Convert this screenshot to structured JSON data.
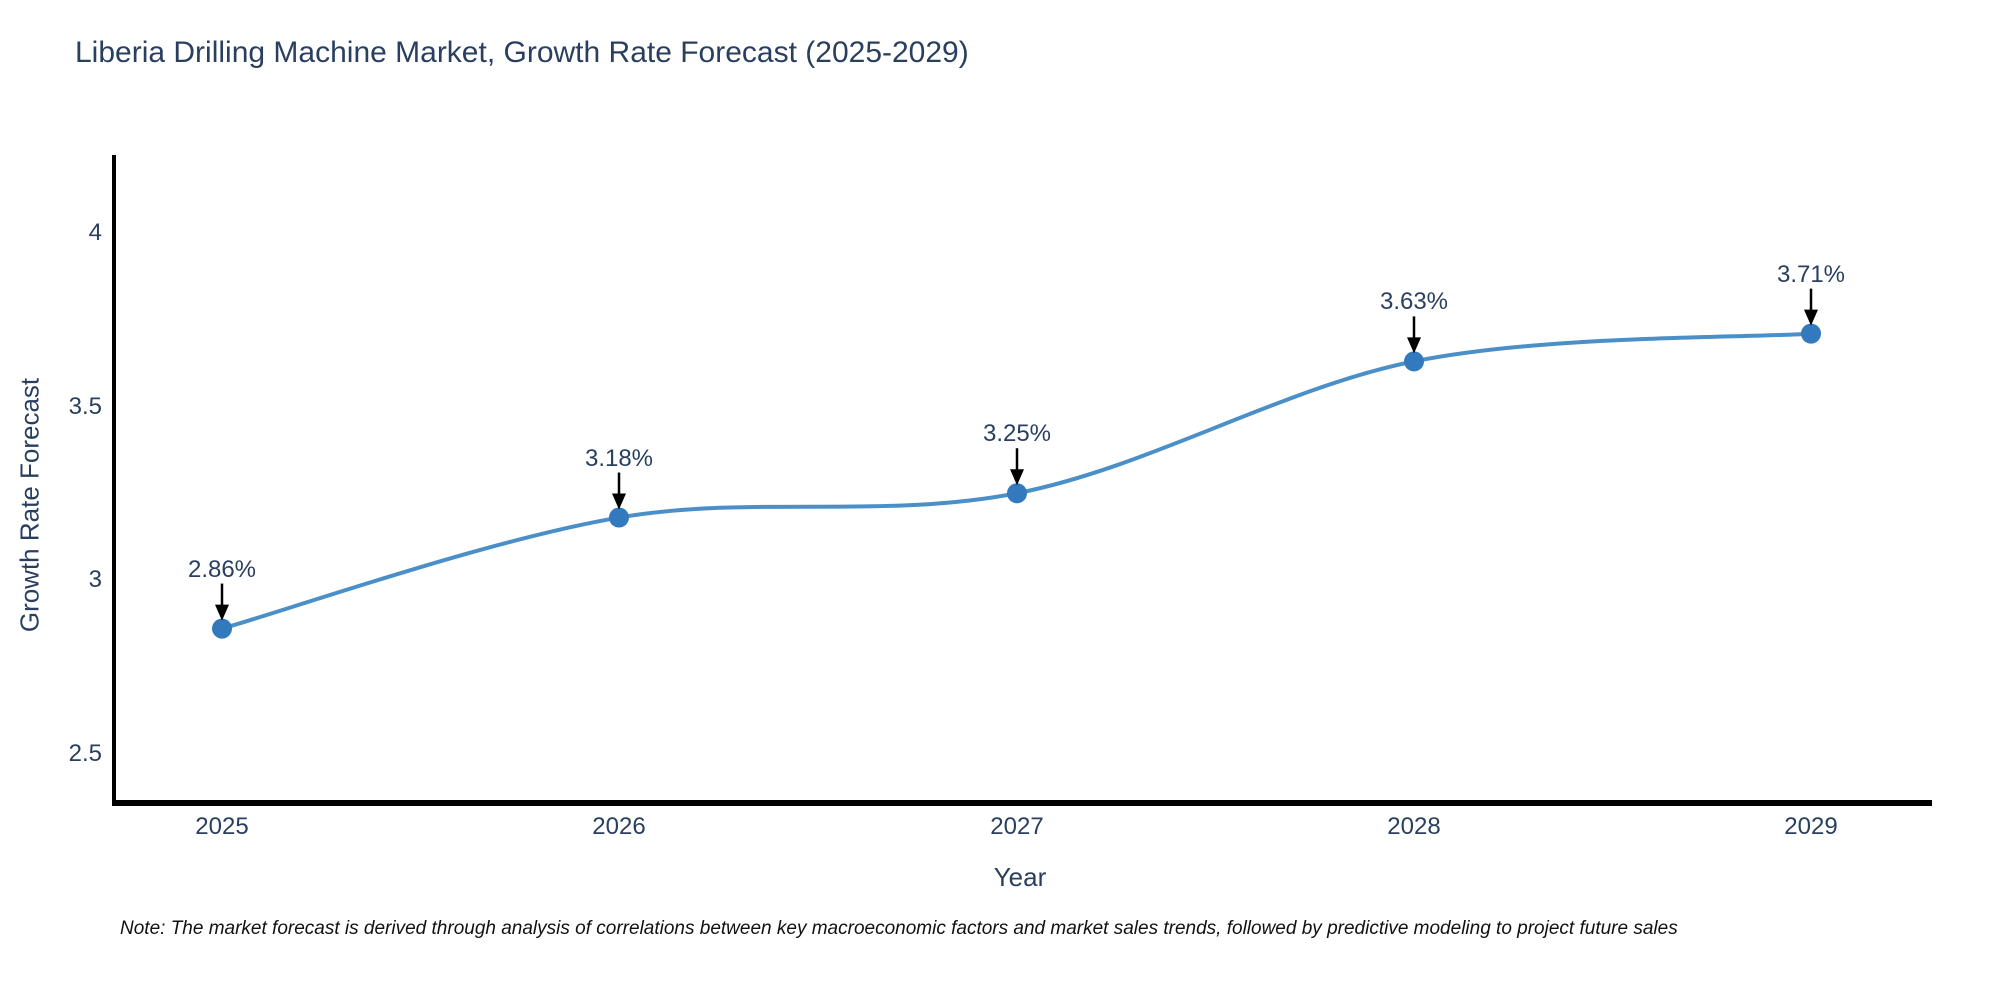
{
  "title": "Liberia Drilling Machine Market, Growth Rate Forecast (2025-2029)",
  "note": "Note: The market forecast is derived through analysis of correlations between key macroeconomic factors and market sales trends, followed by predictive modeling to project future sales",
  "chart_data": {
    "type": "line",
    "line_shape": "spline",
    "title": "Liberia Drilling Machine Market, Growth Rate Forecast (2025-2029)",
    "categories": [
      "2025",
      "2026",
      "2027",
      "2028",
      "2029"
    ],
    "values": [
      2.86,
      3.18,
      3.25,
      3.63,
      3.71
    ],
    "point_labels": [
      "2.86%",
      "3.18%",
      "3.25%",
      "3.63%",
      "3.71%"
    ],
    "xlabel": "Year",
    "ylabel": "Growth Rate Forecast",
    "ylim": [
      2.34,
      4.22
    ],
    "yticks": [
      4,
      3.5,
      3,
      2.5
    ],
    "grid": false,
    "legend": "none",
    "line_color": "#4a8fc7",
    "marker_color": "#3379bd",
    "arrow_color": "#000000",
    "axis_color": "#000000",
    "text_color": "#2a3f5f"
  }
}
